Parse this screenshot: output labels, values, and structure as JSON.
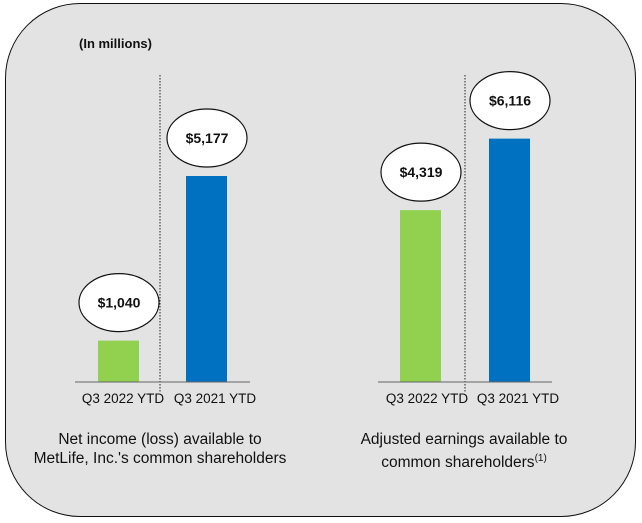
{
  "unit_note": "(In millions)",
  "chart_data": [
    {
      "type": "bar",
      "categories": [
        "Q3 2022 YTD",
        "Q3 2021 YTD"
      ],
      "values": [
        1040,
        5177
      ],
      "data_labels": [
        "$1,040",
        "$5,177"
      ],
      "colors": [
        "#92d050",
        "#0070c0"
      ],
      "title": "Net income (loss) available to MetLife, Inc.'s common shareholders",
      "ylim": [
        0,
        5177
      ]
    },
    {
      "type": "bar",
      "categories": [
        "Q3 2022 YTD",
        "Q3 2021 YTD"
      ],
      "values": [
        4319,
        6116
      ],
      "data_labels": [
        "$4,319",
        "$6,116"
      ],
      "colors": [
        "#92d050",
        "#0070c0"
      ],
      "title": "Adjusted earnings available to common shareholders",
      "title_footnote": "(1)",
      "ylim": [
        0,
        6116
      ]
    }
  ]
}
